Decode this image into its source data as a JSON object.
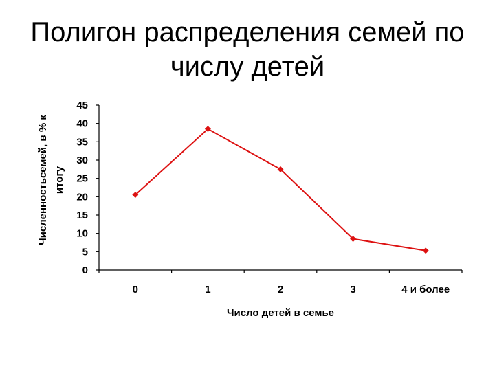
{
  "title_line1": "Полигон распределения семей по",
  "title_line2": "числу детей",
  "chart_data": {
    "type": "line",
    "title": "Полигон распределения семей по числу детей",
    "categories": [
      "0",
      "1",
      "2",
      "3",
      "4 и более"
    ],
    "series": [
      {
        "values": [
          20.5,
          38.5,
          27.5,
          8.5,
          5.3
        ],
        "color": "#dd1111"
      }
    ],
    "xlabel": "Число детей в семье",
    "ylabel_line1": "Численностьсемей, в % к",
    "ylabel_line2": "итогу",
    "ylim": [
      0,
      45
    ],
    "yticks": [
      "0",
      "5",
      "10",
      "15",
      "20",
      "25",
      "30",
      "35",
      "40",
      "45"
    ],
    "grid": false,
    "legend": "none"
  }
}
